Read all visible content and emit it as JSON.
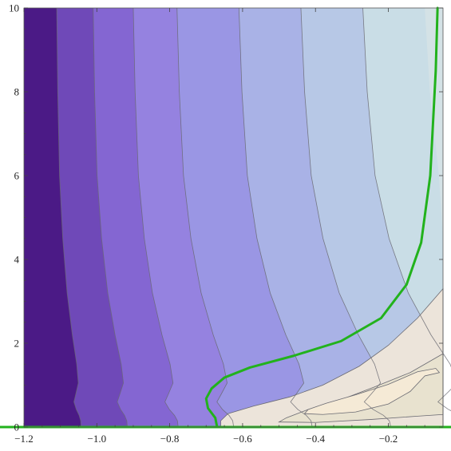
{
  "chart_data": {
    "type": "contour",
    "title": "",
    "xlabel": "",
    "ylabel": "",
    "xlim": [
      -1.2,
      -0.05
    ],
    "ylim": [
      0,
      10
    ],
    "x_ticks": [
      {
        "value": -1.2,
        "label": "−1.2"
      },
      {
        "value": -1.0,
        "label": "−1.0"
      },
      {
        "value": -0.8,
        "label": "−0.8"
      },
      {
        "value": -0.6,
        "label": "−0.6"
      },
      {
        "value": -0.4,
        "label": "−0.4"
      },
      {
        "value": -0.2,
        "label": "−0.2"
      }
    ],
    "y_ticks": [
      {
        "value": 0,
        "label": "0"
      },
      {
        "value": 2,
        "label": "2"
      },
      {
        "value": 4,
        "label": "4"
      },
      {
        "value": 6,
        "label": "6"
      },
      {
        "value": 8,
        "label": "8"
      },
      {
        "value": 10,
        "label": "10"
      }
    ],
    "grid": false,
    "legend": "none",
    "colors": {
      "band_darkest": "#4b1a86",
      "band_lightest": "#f5ead6",
      "zero_contour": "#22b21c",
      "contour_lines": "#6a6a72"
    },
    "contour_bands": [
      {
        "level": 0,
        "color": "#4b1a86",
        "x_at_y10": -1.2
      },
      {
        "level": 1,
        "color": "#6f49b8",
        "x_at_y10": -1.11
      },
      {
        "level": 2,
        "color": "#8466d2",
        "x_at_y10": -1.01
      },
      {
        "level": 3,
        "color": "#9582e0",
        "x_at_y10": -0.9
      },
      {
        "level": 4,
        "color": "#9a96e4",
        "x_at_y10": -0.78
      },
      {
        "level": 5,
        "color": "#a9b2e6",
        "x_at_y10": -0.61
      },
      {
        "level": 6,
        "color": "#b7c8e6",
        "x_at_y10": -0.44
      },
      {
        "level": 7,
        "color": "#c9dde6",
        "x_at_y10": -0.27
      }
    ],
    "zero_contours": [
      {
        "name": "",
        "points": [
          [
            -0.065,
            10
          ],
          [
            -0.07,
            8.5
          ],
          [
            -0.085,
            6
          ],
          [
            -0.11,
            4.4
          ],
          [
            -0.15,
            3.4
          ],
          [
            -0.22,
            2.6
          ],
          [
            -0.33,
            2.05
          ],
          [
            -0.46,
            1.7
          ],
          [
            -0.58,
            1.42
          ],
          [
            -0.65,
            1.18
          ],
          [
            -0.685,
            0.92
          ],
          [
            -0.7,
            0.68
          ],
          [
            -0.695,
            0.45
          ],
          [
            -0.675,
            0.22
          ],
          [
            -0.67,
            0
          ]
        ]
      },
      {
        "name": "",
        "points": [
          [
            -1.2,
            0
          ],
          [
            -0.05,
            0
          ]
        ]
      }
    ],
    "warm_contours": [
      {
        "level": 9,
        "color": "#ece4da",
        "points": [
          [
            -0.05,
            3.3
          ],
          [
            -0.12,
            2.6
          ],
          [
            -0.2,
            1.95
          ],
          [
            -0.28,
            1.45
          ],
          [
            -0.38,
            1.0
          ],
          [
            -0.47,
            0.72
          ],
          [
            -0.57,
            0.5
          ],
          [
            -0.64,
            0.32
          ],
          [
            -0.66,
            0.15
          ],
          [
            -0.66,
            0.02
          ],
          [
            -0.05,
            0.02
          ]
        ]
      },
      {
        "level": 10,
        "color": "#e8e2cf",
        "points": [
          [
            -0.05,
            1.75
          ],
          [
            -0.14,
            1.3
          ],
          [
            -0.24,
            0.95
          ],
          [
            -0.34,
            0.62
          ],
          [
            -0.42,
            0.42
          ],
          [
            -0.48,
            0.22
          ],
          [
            -0.5,
            0.12
          ],
          [
            -0.4,
            0.11
          ],
          [
            -0.25,
            0.18
          ],
          [
            -0.12,
            0.26
          ],
          [
            -0.05,
            0.3
          ]
        ]
      },
      {
        "level": 11,
        "color": "#f5ead6",
        "points": [
          [
            -0.1,
            1.22
          ],
          [
            -0.06,
            1.3
          ],
          [
            -0.07,
            1.4
          ],
          [
            -0.12,
            1.32
          ],
          [
            -0.2,
            1.02
          ],
          [
            -0.29,
            0.77
          ],
          [
            -0.37,
            0.57
          ],
          [
            -0.42,
            0.42
          ],
          [
            -0.43,
            0.32
          ],
          [
            -0.38,
            0.3
          ],
          [
            -0.29,
            0.36
          ],
          [
            -0.2,
            0.55
          ],
          [
            -0.14,
            0.85
          ]
        ]
      }
    ]
  }
}
